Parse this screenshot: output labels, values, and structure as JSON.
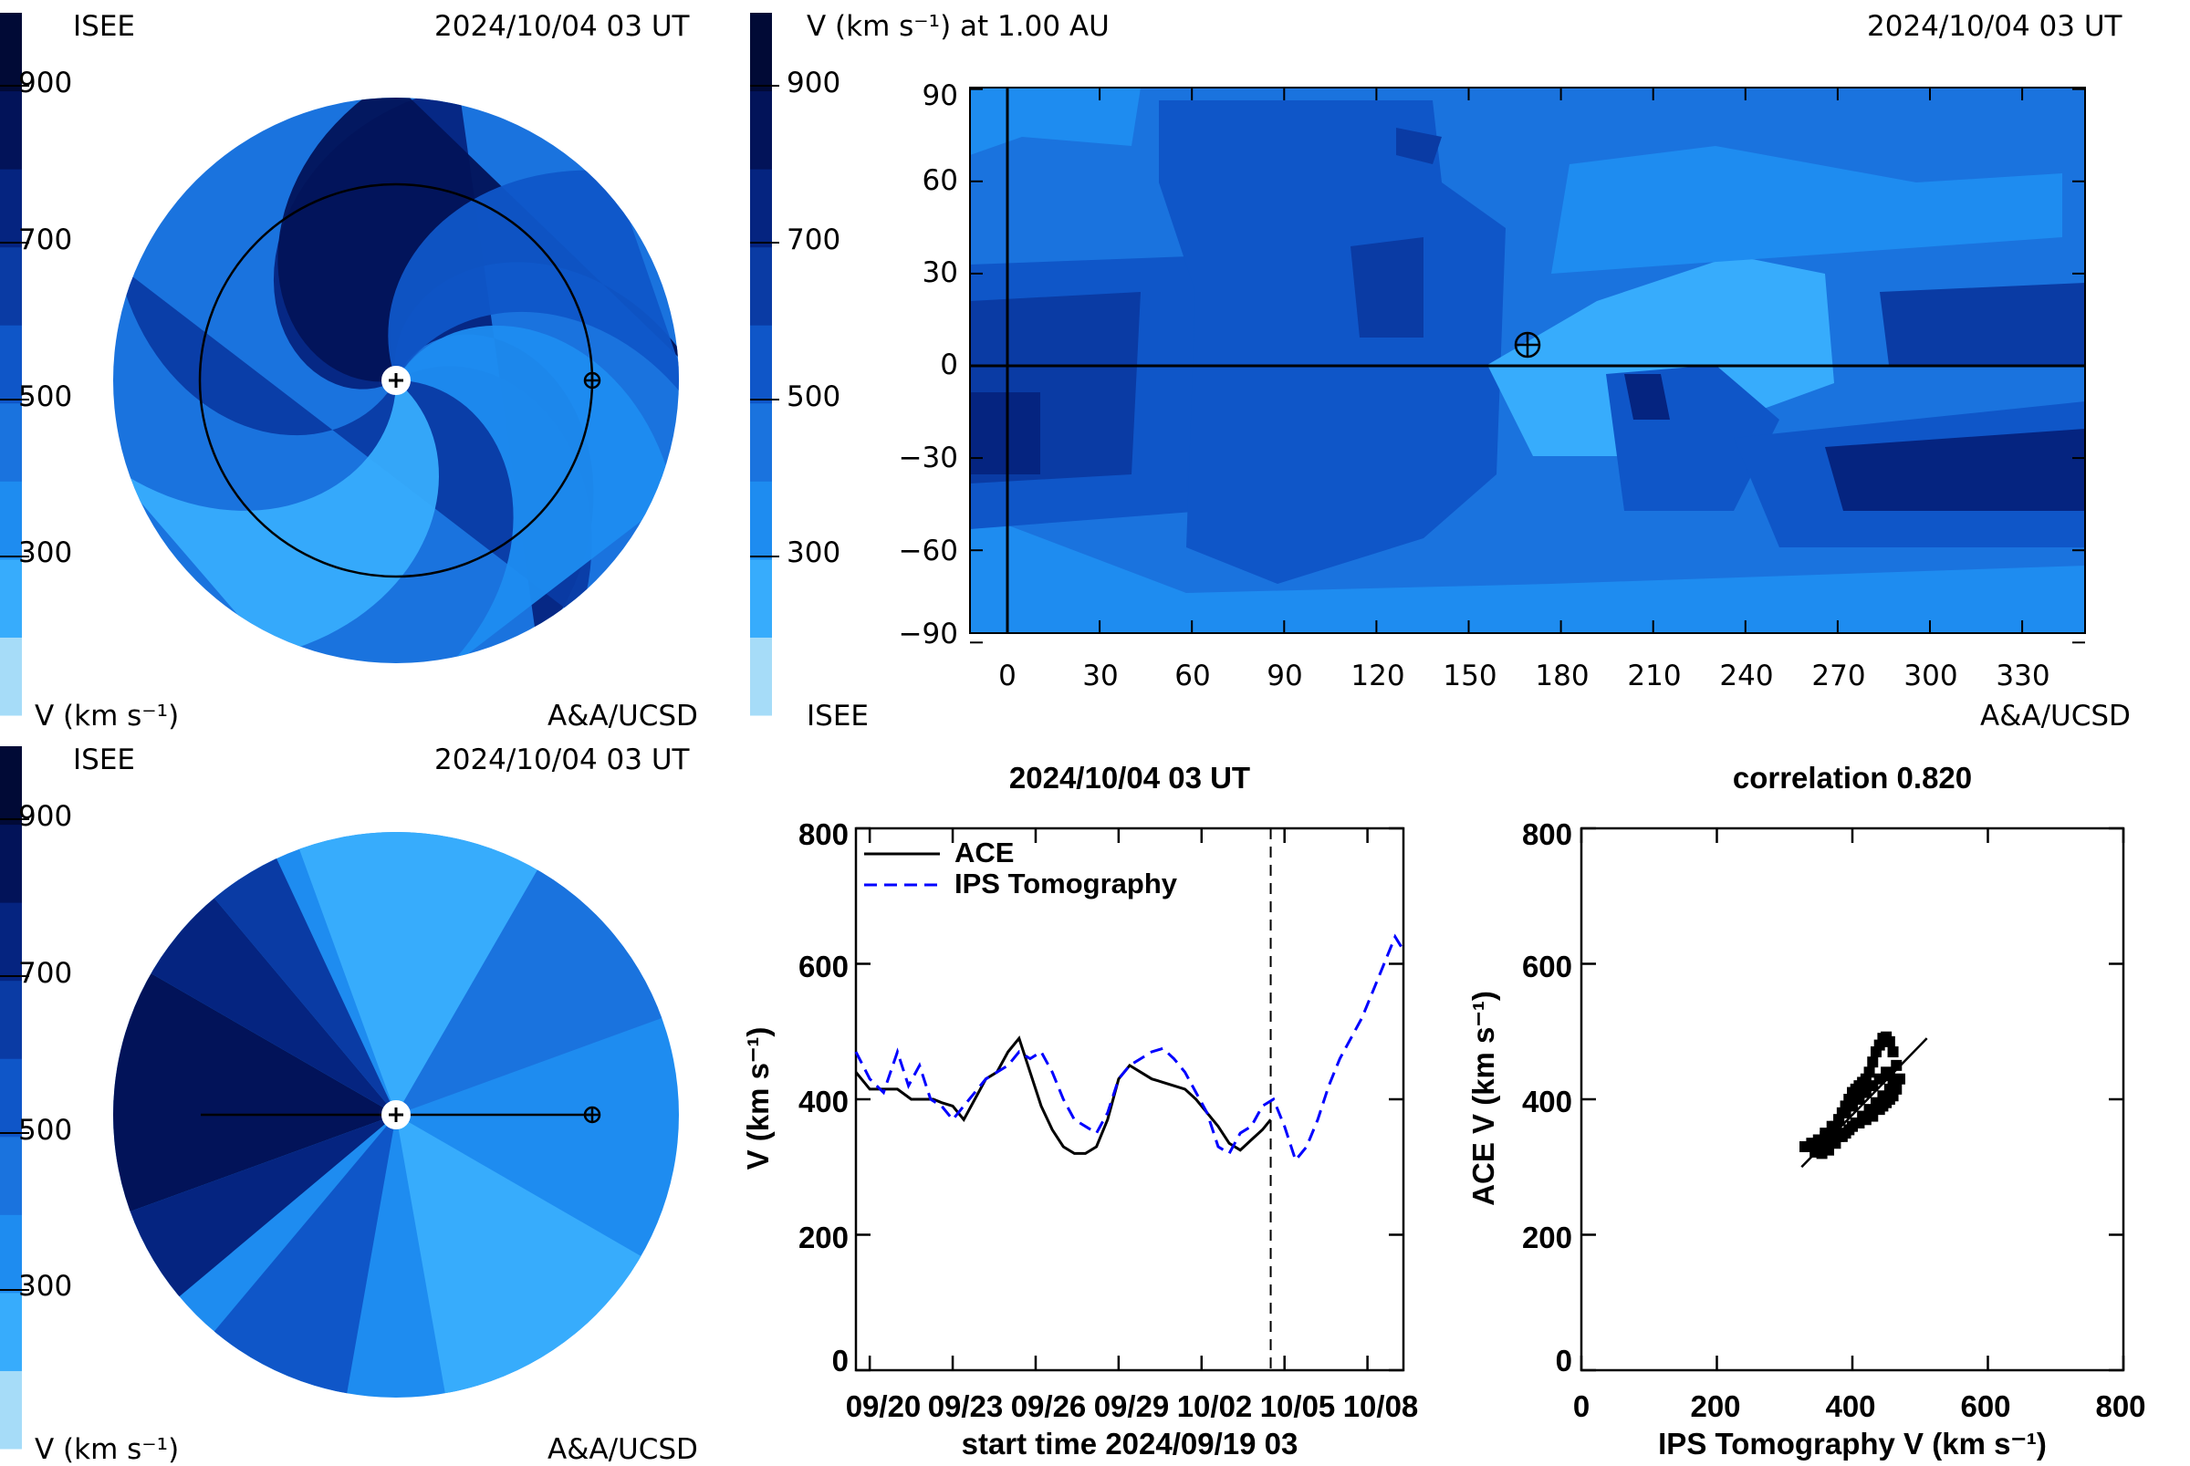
{
  "colors": {
    "contour_levels": [
      "#a6dcf8",
      "#37acfc",
      "#1e8cf0",
      "#1a73de",
      "#0f56c8",
      "#0a3ba4",
      "#052480",
      "#021359",
      "#010a36"
    ],
    "ips_series": "#0000ff",
    "ace_series": "#000000",
    "earth_marker": "#000000",
    "sun_marker": "#ffffff"
  },
  "icons": {
    "earth": "earth-symbol-icon",
    "sun": "sun-symbol-icon"
  },
  "panel_top_left": {
    "org": "ISEE",
    "time": "2024/10/04 03 UT",
    "credit": "A&A/UCSD",
    "colorbar_label": "V (km s⁻¹)",
    "colorbar_ticks": [
      "900",
      "700",
      "500",
      "300"
    ]
  },
  "panel_top_right": {
    "title": "V (km s⁻¹) at 1.00 AU",
    "time": "2024/10/04 03 UT",
    "org": "ISEE",
    "credit": "A&A/UCSD",
    "colorbar_ticks": [
      "900",
      "700",
      "500",
      "300"
    ],
    "y_ticks": [
      "90",
      "60",
      "30",
      "0",
      "−30",
      "−60",
      "−90"
    ],
    "x_ticks": [
      "0",
      "30",
      "60",
      "90",
      "120",
      "150",
      "180",
      "210",
      "240",
      "270",
      "300",
      "330"
    ]
  },
  "panel_bottom_left": {
    "org": "ISEE",
    "time": "2024/10/04 03 UT",
    "credit": "A&A/UCSD",
    "colorbar_label": "V (km s⁻¹)",
    "colorbar_ticks": [
      "900",
      "700",
      "500",
      "300"
    ]
  },
  "chart_data": [
    {
      "type": "line",
      "title": "2024/10/04 03 UT",
      "xlabel": "start time 2024/09/19 03",
      "ylabel": "V (km s⁻¹)",
      "ylim": [
        0,
        800
      ],
      "xlim_days": [
        0.5,
        20.3
      ],
      "x_ticks": [
        "09/20",
        "09/23",
        "09/26",
        "09/29",
        "10/02",
        "10/05",
        "10/08"
      ],
      "y_ticks": [
        "800",
        "600",
        "400",
        "200",
        "0"
      ],
      "legend": "top-left",
      "current_time_marker_day": 15.5,
      "series": [
        {
          "name": "ACE",
          "style": "solid",
          "x": [
            0.5,
            1.0,
            1.5,
            2.0,
            2.5,
            3.0,
            3.3,
            3.6,
            4.0,
            4.4,
            4.8,
            5.2,
            5.6,
            6.0,
            6.4,
            6.8,
            7.2,
            7.6,
            8.0,
            8.4,
            8.8,
            9.2,
            9.6,
            10.0,
            10.4,
            10.8,
            11.2,
            11.6,
            12.0,
            12.4,
            12.8,
            13.2,
            13.6,
            14.0,
            14.4,
            14.8,
            15.2,
            15.5
          ],
          "y": [
            440,
            415,
            415,
            415,
            400,
            400,
            400,
            395,
            390,
            370,
            400,
            430,
            440,
            470,
            490,
            440,
            390,
            355,
            330,
            320,
            320,
            330,
            370,
            430,
            450,
            440,
            430,
            425,
            420,
            415,
            400,
            380,
            360,
            335,
            325,
            340,
            355,
            370
          ]
        },
        {
          "name": "IPS Tomography",
          "style": "dashed",
          "x": [
            0.5,
            1.0,
            1.5,
            2.0,
            2.4,
            2.8,
            3.2,
            3.6,
            4.0,
            4.4,
            4.8,
            5.2,
            5.6,
            6.0,
            6.4,
            6.8,
            7.2,
            7.6,
            8.0,
            8.4,
            8.8,
            9.2,
            9.6,
            10.0,
            10.4,
            10.8,
            11.2,
            11.6,
            12.0,
            12.4,
            12.8,
            13.2,
            13.6,
            14.0,
            14.4,
            14.8,
            15.2,
            15.6,
            16.0,
            16.4,
            16.8,
            17.2,
            17.6,
            18.0,
            18.4,
            18.8,
            19.2,
            19.6,
            20.0,
            20.3
          ],
          "y": [
            470,
            430,
            410,
            470,
            420,
            450,
            400,
            390,
            370,
            390,
            410,
            430,
            440,
            450,
            470,
            460,
            470,
            440,
            400,
            370,
            360,
            350,
            380,
            430,
            450,
            460,
            470,
            475,
            460,
            440,
            410,
            380,
            330,
            320,
            350,
            360,
            390,
            400,
            360,
            310,
            330,
            370,
            420,
            460,
            490,
            520,
            560,
            600,
            640,
            620
          ]
        }
      ]
    },
    {
      "type": "scatter",
      "title": "correlation 0.820",
      "xlabel": "IPS Tomography V (km s⁻¹)",
      "ylabel": "ACE V (km s⁻¹)",
      "xlim": [
        0,
        800
      ],
      "ylim": [
        0,
        800
      ],
      "x_ticks": [
        "0",
        "200",
        "400",
        "600",
        "800"
      ],
      "y_ticks": [
        "800",
        "600",
        "400",
        "200",
        "0"
      ],
      "fit_line": {
        "x": [
          325,
          510
        ],
        "y": [
          300,
          490
        ]
      },
      "points": {
        "x": [
          330,
          340,
          350,
          360,
          370,
          375,
          380,
          385,
          390,
          395,
          400,
          405,
          410,
          415,
          420,
          425,
          430,
          435,
          440,
          445,
          450,
          455,
          460,
          465,
          470,
          465,
          460,
          455,
          450,
          445,
          440,
          430,
          420,
          410,
          400,
          390,
          380,
          370,
          360,
          350,
          345,
          355,
          365,
          375,
          385,
          395,
          405,
          415,
          425,
          435,
          445,
          455,
          460,
          455,
          450,
          440,
          430,
          420,
          410,
          400,
          390,
          380,
          370,
          360,
          350,
          340
        ],
        "y": [
          330,
          335,
          340,
          345,
          350,
          360,
          370,
          380,
          390,
          400,
          410,
          415,
          420,
          425,
          430,
          440,
          455,
          470,
          480,
          490,
          492,
          485,
          470,
          450,
          430,
          415,
          405,
          400,
          395,
          390,
          385,
          375,
          370,
          365,
          360,
          350,
          345,
          340,
          330,
          325,
          322,
          320,
          325,
          335,
          345,
          355,
          365,
          375,
          385,
          395,
          405,
          415,
          425,
          435,
          440,
          430,
          420,
          410,
          400,
          390,
          380,
          370,
          360,
          350,
          340,
          335
        ]
      }
    }
  ]
}
